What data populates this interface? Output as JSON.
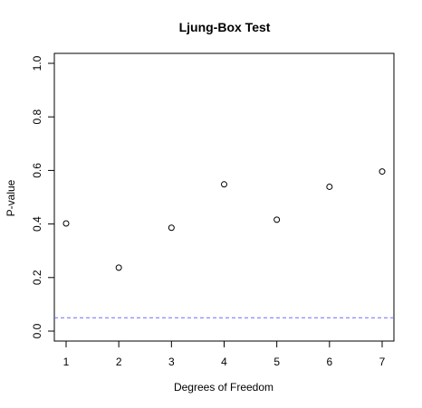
{
  "chart_data": {
    "type": "scatter",
    "title": "Ljung-Box Test",
    "xlabel": "Degrees of Freedom",
    "ylabel": "P-value",
    "x": [
      1,
      2,
      3,
      4,
      5,
      6,
      7
    ],
    "y": [
      0.402,
      0.237,
      0.386,
      0.548,
      0.416,
      0.539,
      0.596
    ],
    "xlim": [
      1,
      7
    ],
    "ylim": [
      0,
      1
    ],
    "x_ticks": [
      "1",
      "2",
      "3",
      "4",
      "5",
      "6",
      "7"
    ],
    "y_ticks": [
      "0.0",
      "0.2",
      "0.4",
      "0.6",
      "0.8",
      "1.0"
    ],
    "reference_line": {
      "y": 0.05,
      "style": "dashed",
      "color": "#6B6BFF"
    },
    "marker": "open-circle",
    "grid": false,
    "legend": "none"
  }
}
